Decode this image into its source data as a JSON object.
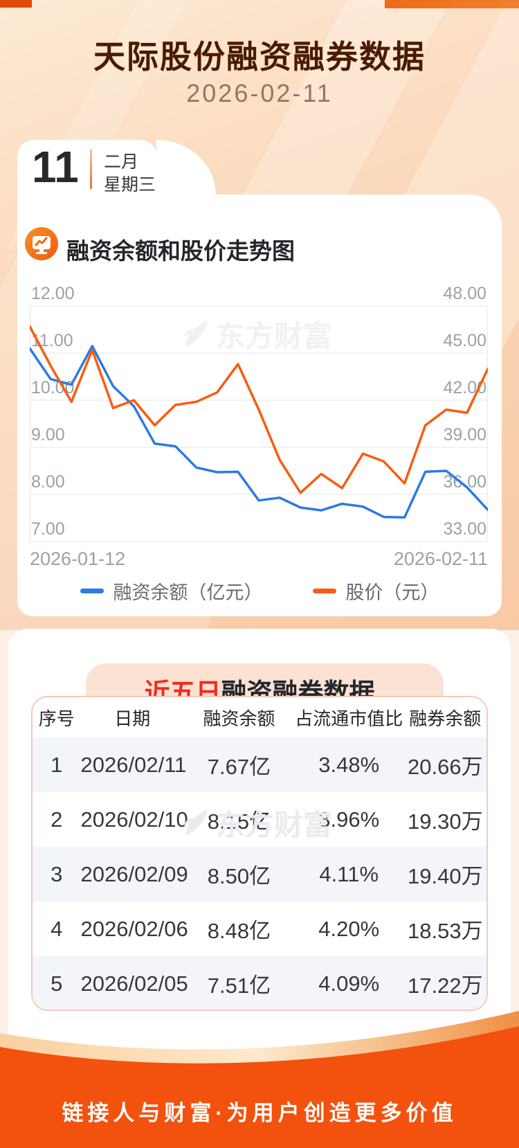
{
  "header": {
    "title": "天际股份融资融券数据",
    "date": "2026-02-11"
  },
  "date_card": {
    "day": "11",
    "month": "二月",
    "weekday": "星期三"
  },
  "chart_section": {
    "title": "融资余额和股价走势图"
  },
  "watermark": {
    "brand": "东方财富"
  },
  "colors": {
    "line_blue": "#2b7be2",
    "line_orange": "#f95c10",
    "accent_red": "#f8271c",
    "footer_orange": "#f2520d",
    "title_brown": "#4a1b02",
    "banner_bg": "#fbe2d3",
    "stripe_gray": "#f4f5f8"
  },
  "chart_data": {
    "type": "line",
    "title": "融资余额和股价走势图",
    "x": [
      "2026-01-12",
      "2026-01-13",
      "2026-01-14",
      "2026-01-15",
      "2026-01-16",
      "2026-01-19",
      "2026-01-20",
      "2026-01-21",
      "2026-01-22",
      "2026-01-23",
      "2026-01-26",
      "2026-01-27",
      "2026-01-28",
      "2026-01-29",
      "2026-01-30",
      "2026-02-02",
      "2026-02-03",
      "2026-02-04",
      "2026-02-05",
      "2026-02-06",
      "2026-02-09",
      "2026-02-10",
      "2026-02-11"
    ],
    "x_axis_shown_labels": [
      "2026-01-12",
      "2026-02-11"
    ],
    "left_axis": {
      "ticks": [
        12,
        11,
        10,
        9,
        8,
        7
      ],
      "range": [
        7,
        12
      ]
    },
    "right_axis": {
      "ticks": [
        48,
        45,
        42,
        39,
        36,
        33
      ],
      "range": [
        33,
        48
      ]
    },
    "grid": true,
    "legend_position": "bottom",
    "series": [
      {
        "name": "融资余额（亿元）",
        "axis": "left",
        "color": "#2b7be2",
        "values": [
          11.1,
          10.45,
          10.33,
          11.15,
          10.3,
          9.87,
          9.08,
          9.02,
          8.57,
          8.47,
          8.48,
          7.87,
          7.93,
          7.72,
          7.66,
          7.8,
          7.74,
          7.52,
          7.51,
          8.48,
          8.5,
          8.15,
          7.67
        ]
      },
      {
        "name": "股价（元）",
        "axis": "right",
        "color": "#f95c10",
        "values": [
          46.7,
          44.2,
          41.9,
          45.2,
          41.5,
          42.0,
          40.4,
          41.7,
          41.9,
          42.5,
          44.3,
          41.4,
          38.2,
          36.1,
          37.3,
          36.4,
          38.6,
          38.1,
          36.7,
          40.4,
          41.4,
          41.2,
          44.0
        ]
      }
    ]
  },
  "table_section": {
    "title_highlight": "近五日",
    "title_rest": "融资融券数据",
    "columns": [
      "序号",
      "日期",
      "融资余额",
      "占流通市值比",
      "融券余额"
    ],
    "rows": [
      [
        "1",
        "2026/02/11",
        "7.67亿",
        "3.48%",
        "20.66万"
      ],
      [
        "2",
        "2026/02/10",
        "8.15亿",
        "3.96%",
        "19.30万"
      ],
      [
        "3",
        "2026/02/09",
        "8.50亿",
        "4.11%",
        "19.40万"
      ],
      [
        "4",
        "2026/02/06",
        "8.48亿",
        "4.20%",
        "18.53万"
      ],
      [
        "5",
        "2026/02/05",
        "7.51亿",
        "4.09%",
        "17.22万"
      ]
    ]
  },
  "footer": {
    "slogan": "链接人与财富·为用户创造更多价值"
  }
}
